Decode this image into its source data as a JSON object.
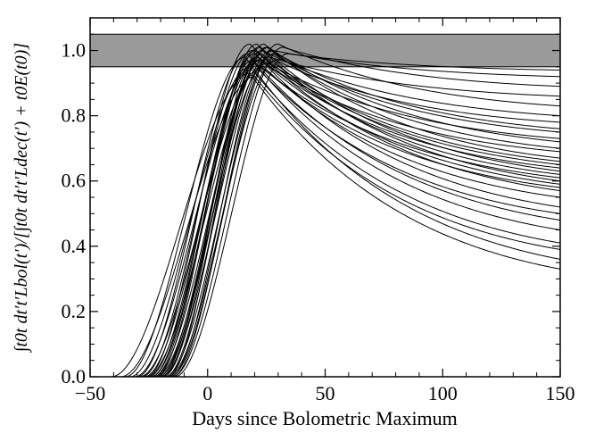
{
  "chart_data": {
    "type": "line",
    "title": "",
    "xlabel": "Days since Bolometric Maximum",
    "ylabel": "∫t0t dt′t′Lbol(t′)/[∫t0t dt′t′Ldec(t′) + t0E(t0)]",
    "xlim": [
      -50,
      150
    ],
    "ylim": [
      0.0,
      1.1
    ],
    "xticks": [
      "−50",
      "0",
      "50",
      "100",
      "150"
    ],
    "yticks": [
      "0.0",
      "0.2",
      "0.4",
      "0.6",
      "0.8",
      "1.0"
    ],
    "grid": false,
    "legend": "none",
    "band": {
      "y_low": 0.95,
      "y_high": 1.05,
      "color": "#9a9a9a"
    },
    "line_color": "#000000",
    "curves": [
      {
        "t0": -41,
        "peak_x": 18,
        "peak_y": 0.93,
        "end_y": 0.33
      },
      {
        "t0": -37,
        "peak_x": 20,
        "peak_y": 0.92,
        "end_y": 0.39
      },
      {
        "t0": -35,
        "peak_x": 16,
        "peak_y": 0.98,
        "end_y": 0.36
      },
      {
        "t0": -33,
        "peak_x": 18,
        "peak_y": 0.95,
        "end_y": 0.41
      },
      {
        "t0": -31,
        "peak_x": 20,
        "peak_y": 0.96,
        "end_y": 0.45
      },
      {
        "t0": -30,
        "peak_x": 17,
        "peak_y": 0.99,
        "end_y": 0.48
      },
      {
        "t0": -29,
        "peak_x": 22,
        "peak_y": 0.94,
        "end_y": 0.5
      },
      {
        "t0": -28,
        "peak_x": 19,
        "peak_y": 1.0,
        "end_y": 0.52
      },
      {
        "t0": -27,
        "peak_x": 21,
        "peak_y": 0.97,
        "end_y": 0.55
      },
      {
        "t0": -26,
        "peak_x": 18,
        "peak_y": 1.02,
        "end_y": 0.57
      },
      {
        "t0": -26,
        "peak_x": 23,
        "peak_y": 0.95,
        "end_y": 0.58
      },
      {
        "t0": -25,
        "peak_x": 20,
        "peak_y": 0.99,
        "end_y": 0.59
      },
      {
        "t0": -24,
        "peak_x": 22,
        "peak_y": 1.01,
        "end_y": 0.6
      },
      {
        "t0": -24,
        "peak_x": 19,
        "peak_y": 0.97,
        "end_y": 0.61
      },
      {
        "t0": -23,
        "peak_x": 24,
        "peak_y": 0.98,
        "end_y": 0.62
      },
      {
        "t0": -23,
        "peak_x": 21,
        "peak_y": 1.02,
        "end_y": 0.63
      },
      {
        "t0": -22,
        "peak_x": 25,
        "peak_y": 0.96,
        "end_y": 0.64
      },
      {
        "t0": -22,
        "peak_x": 20,
        "peak_y": 1.0,
        "end_y": 0.65
      },
      {
        "t0": -21,
        "peak_x": 23,
        "peak_y": 0.99,
        "end_y": 0.66
      },
      {
        "t0": -21,
        "peak_x": 26,
        "peak_y": 1.01,
        "end_y": 0.67
      },
      {
        "t0": -20,
        "peak_x": 22,
        "peak_y": 0.97,
        "end_y": 0.69
      },
      {
        "t0": -20,
        "peak_x": 27,
        "peak_y": 1.0,
        "end_y": 0.7
      },
      {
        "t0": -19,
        "peak_x": 24,
        "peak_y": 1.02,
        "end_y": 0.72
      },
      {
        "t0": -19,
        "peak_x": 21,
        "peak_y": 0.98,
        "end_y": 0.73
      },
      {
        "t0": -18,
        "peak_x": 28,
        "peak_y": 0.99,
        "end_y": 0.75
      },
      {
        "t0": -18,
        "peak_x": 25,
        "peak_y": 1.01,
        "end_y": 0.76
      },
      {
        "t0": -17,
        "peak_x": 29,
        "peak_y": 0.97,
        "end_y": 0.78
      },
      {
        "t0": -17,
        "peak_x": 23,
        "peak_y": 1.0,
        "end_y": 0.8
      },
      {
        "t0": -16,
        "peak_x": 30,
        "peak_y": 1.02,
        "end_y": 0.83
      },
      {
        "t0": -16,
        "peak_x": 26,
        "peak_y": 0.98,
        "end_y": 0.86
      },
      {
        "t0": -15,
        "peak_x": 32,
        "peak_y": 1.01,
        "end_y": 0.89
      },
      {
        "t0": -15,
        "peak_x": 28,
        "peak_y": 1.0,
        "end_y": 0.92
      },
      {
        "t0": -14,
        "peak_x": 34,
        "peak_y": 0.99,
        "end_y": 0.94
      }
    ]
  }
}
